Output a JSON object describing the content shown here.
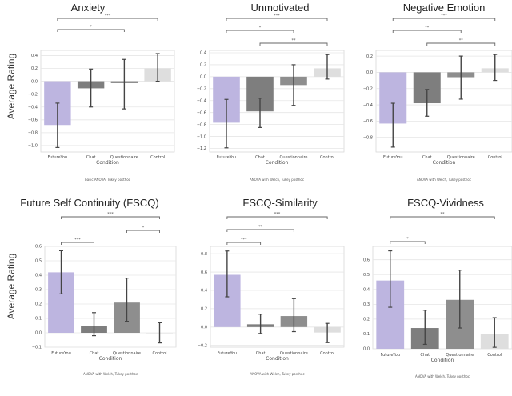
{
  "chart_data": [
    {
      "type": "bar",
      "title": "Anxiety",
      "xlabel": "Condition",
      "ylabel": "Average Rating",
      "categories": [
        "FutureYou",
        "Chat",
        "Questionnaire",
        "Control"
      ],
      "values": [
        -0.68,
        -0.11,
        -0.03,
        0.2
      ],
      "ci_low": [
        -1.03,
        -0.4,
        -0.43,
        0.0
      ],
      "ci_high": [
        -0.34,
        0.19,
        0.34,
        0.43
      ],
      "ylim": [
        -1.1,
        0.48
      ],
      "yticks": [
        -1.0,
        -0.8,
        -0.6,
        -0.4,
        -0.2,
        0.0,
        0.2,
        0.4
      ],
      "grid": true,
      "significance": [
        {
          "from": "FutureYou",
          "to": "Control",
          "label": "***"
        },
        {
          "from": "FutureYou",
          "to": "Questionnaire",
          "label": "*"
        }
      ],
      "note": "basic ANOVA, Tukey posthoc"
    },
    {
      "type": "bar",
      "title": "Unmotivated",
      "xlabel": "Condition",
      "ylabel": "",
      "categories": [
        "FutureYou",
        "Chat",
        "Questionnaire",
        "Control"
      ],
      "values": [
        -0.77,
        -0.58,
        -0.14,
        0.14
      ],
      "ci_low": [
        -1.19,
        -0.85,
        -0.48,
        -0.04
      ],
      "ci_high": [
        -0.38,
        -0.36,
        0.2,
        0.37
      ],
      "ylim": [
        -1.26,
        0.44
      ],
      "yticks": [
        -1.2,
        -1.0,
        -0.8,
        -0.6,
        -0.4,
        -0.2,
        0.0,
        0.2,
        0.4
      ],
      "grid": true,
      "significance": [
        {
          "from": "FutureYou",
          "to": "Control",
          "label": "***"
        },
        {
          "from": "FutureYou",
          "to": "Questionnaire",
          "label": "*"
        },
        {
          "from": "Chat",
          "to": "Control",
          "label": "**"
        }
      ],
      "note": "ANOVA with Welch, Tukey posthoc"
    },
    {
      "type": "bar",
      "title": "Negative Emotion",
      "xlabel": "Condition",
      "ylabel": "",
      "categories": [
        "FutureYou",
        "Chat",
        "Questionnaire",
        "Control"
      ],
      "values": [
        -0.63,
        -0.38,
        -0.06,
        0.05
      ],
      "ci_low": [
        -0.92,
        -0.54,
        -0.33,
        -0.1
      ],
      "ci_high": [
        -0.38,
        -0.21,
        0.2,
        0.22
      ],
      "ylim": [
        -0.98,
        0.27
      ],
      "yticks": [
        -0.8,
        -0.6,
        -0.4,
        -0.2,
        0.0,
        0.2
      ],
      "grid": true,
      "significance": [
        {
          "from": "FutureYou",
          "to": "Control",
          "label": "***"
        },
        {
          "from": "FutureYou",
          "to": "Questionnaire",
          "label": "**"
        },
        {
          "from": "Chat",
          "to": "Control",
          "label": "**"
        }
      ],
      "note": "ANOVA with Welch, Tukey posthoc"
    },
    {
      "type": "bar",
      "title": "Future Self Continuity (FSCQ)",
      "xlabel": "Condition",
      "ylabel": "Average Rating",
      "categories": [
        "FutureYou",
        "Chat",
        "Questionnaire",
        "Control"
      ],
      "values": [
        0.42,
        0.05,
        0.21,
        0.0
      ],
      "ci_low": [
        0.27,
        -0.02,
        0.08,
        -0.07
      ],
      "ci_high": [
        0.57,
        0.14,
        0.38,
        0.07
      ],
      "ylim": [
        -0.1,
        0.6
      ],
      "yticks": [
        -0.1,
        0.0,
        0.1,
        0.2,
        0.3,
        0.4,
        0.5,
        0.6
      ],
      "grid": true,
      "significance": [
        {
          "from": "FutureYou",
          "to": "Control",
          "label": "***"
        },
        {
          "from": "Questionnaire",
          "to": "Control",
          "label": "*"
        },
        {
          "from": "FutureYou",
          "to": "Chat",
          "label": "***"
        }
      ],
      "note": "ANOVA with Welch, Tukey posthoc"
    },
    {
      "type": "bar",
      "title": "FSCQ-Similarity",
      "xlabel": "Condition",
      "ylabel": "",
      "categories": [
        "FutureYou",
        "Chat",
        "Questionnaire",
        "Control"
      ],
      "values": [
        0.57,
        0.03,
        0.12,
        -0.06
      ],
      "ci_low": [
        0.33,
        -0.07,
        -0.05,
        -0.17
      ],
      "ci_high": [
        0.83,
        0.14,
        0.31,
        0.04
      ],
      "ylim": [
        -0.22,
        0.88
      ],
      "yticks": [
        -0.2,
        0.0,
        0.2,
        0.4,
        0.6,
        0.8
      ],
      "grid": true,
      "significance": [
        {
          "from": "FutureYou",
          "to": "Control",
          "label": "***"
        },
        {
          "from": "FutureYou",
          "to": "Questionnaire",
          "label": "**"
        },
        {
          "from": "FutureYou",
          "to": "Chat",
          "label": "***"
        }
      ],
      "note": "ANOVA with Welch, Tukey posthoc"
    },
    {
      "type": "bar",
      "title": "FSCQ-Vividness",
      "xlabel": "Condition",
      "ylabel": "",
      "categories": [
        "FutureYou",
        "Chat",
        "Questionnaire",
        "Control"
      ],
      "values": [
        0.46,
        0.14,
        0.33,
        0.1
      ],
      "ci_low": [
        0.28,
        0.03,
        0.14,
        0.01
      ],
      "ci_high": [
        0.66,
        0.26,
        0.53,
        0.21
      ],
      "ylim": [
        0.0,
        0.69
      ],
      "yticks": [
        0.0,
        0.1,
        0.2,
        0.3,
        0.4,
        0.5,
        0.6
      ],
      "grid": true,
      "significance": [
        {
          "from": "FutureYou",
          "to": "Control",
          "label": "**"
        },
        {
          "from": "FutureYou",
          "to": "Chat",
          "label": "*"
        }
      ],
      "note": "ANOVA with Welch, Tukey posthoc"
    }
  ],
  "colors": {
    "FutureYou": "#bdb5e0",
    "Chat": "#7e7e7e",
    "Questionnaire": "#8e8e8e",
    "Control": "#dedede",
    "errorbar": "#444444",
    "grid": "#e6e6e6",
    "frame": "#d8d8d8"
  }
}
